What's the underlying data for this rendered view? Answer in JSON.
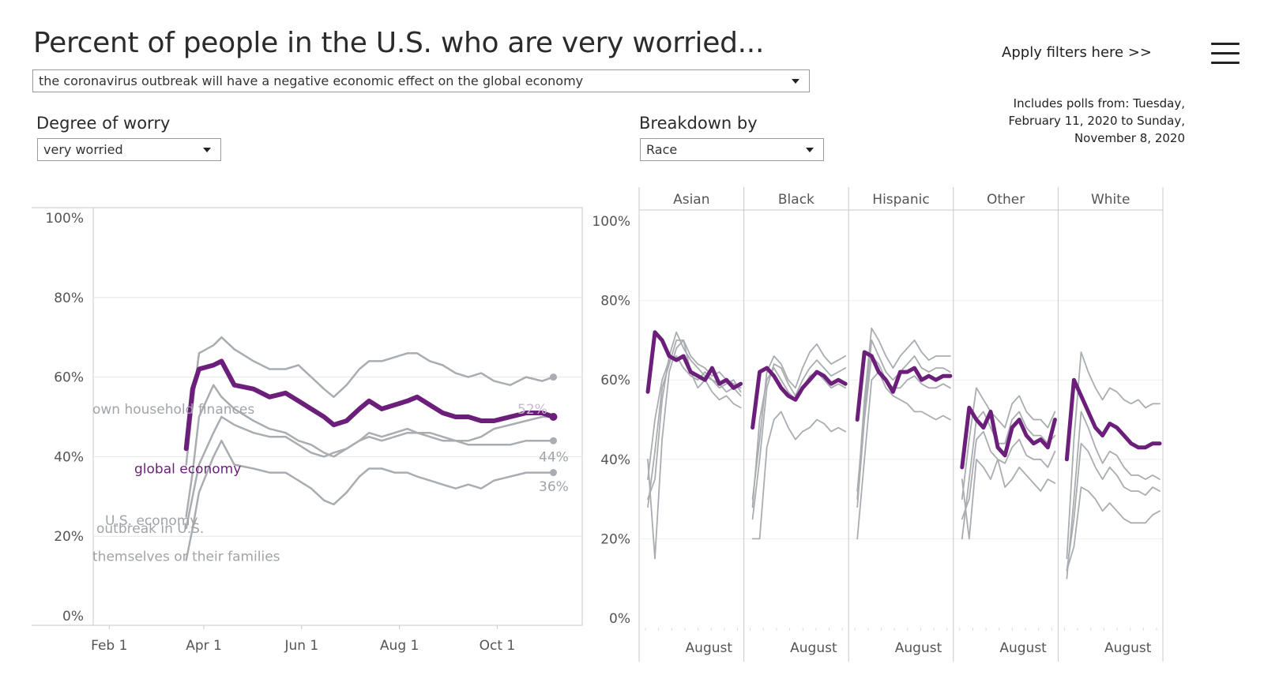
{
  "header": {
    "title": "Percent of people in the U.S. who are very worried...",
    "apply_filters": "Apply filters here >>",
    "polls_note": [
      "Includes polls from: Tuesday,",
      "February 11, 2020 to Sunday,",
      "November 8, 2020"
    ]
  },
  "filters": {
    "topic": {
      "value": "the coronavirus outbreak will have a negative economic effect on the global economy"
    },
    "degree": {
      "label": "Degree of worry",
      "value": "very worried"
    },
    "breakdown": {
      "label": "Breakdown by",
      "value": "Race"
    }
  },
  "colors": {
    "highlight": "#6b1f7a",
    "other": "#a9adb1",
    "grid": "#e6e6e6",
    "axis": "#c8c8c8"
  },
  "chart_data": [
    {
      "type": "line",
      "title": "Percent of people in the U.S. who are very worried...",
      "ylim": [
        0,
        100
      ],
      "yticks": [
        "0%",
        "20%",
        "40%",
        "60%",
        "80%",
        "100%"
      ],
      "xticks": [
        "Feb 1",
        "Apr 1",
        "Jun 1",
        "Aug 1",
        "Oct 1"
      ],
      "x_range_days": [
        0,
        305
      ],
      "xtick_days": [
        10,
        69,
        130,
        191,
        252
      ],
      "end_labels": [
        "52%",
        "44%",
        "36%"
      ],
      "series": [
        {
          "name": "global economy",
          "highlight": true,
          "points": [
            [
              58,
              42
            ],
            [
              62,
              57
            ],
            [
              66,
              62
            ],
            [
              75,
              63
            ],
            [
              80,
              64
            ],
            [
              88,
              58
            ],
            [
              100,
              57
            ],
            [
              110,
              55
            ],
            [
              120,
              56
            ],
            [
              128,
              54
            ],
            [
              136,
              52
            ],
            [
              144,
              50
            ],
            [
              150,
              48
            ],
            [
              158,
              49
            ],
            [
              166,
              52
            ],
            [
              172,
              54
            ],
            [
              180,
              52
            ],
            [
              188,
              53
            ],
            [
              196,
              54
            ],
            [
              202,
              55
            ],
            [
              210,
              53
            ],
            [
              218,
              51
            ],
            [
              226,
              50
            ],
            [
              234,
              50
            ],
            [
              242,
              49
            ],
            [
              250,
              49
            ],
            [
              260,
              50
            ],
            [
              270,
              51
            ],
            [
              280,
              51
            ],
            [
              287,
              50
            ]
          ]
        },
        {
          "name": "U.S. economy",
          "highlight": false,
          "points": [
            [
              58,
              38
            ],
            [
              62,
              53
            ],
            [
              66,
              66
            ],
            [
              75,
              68
            ],
            [
              80,
              70
            ],
            [
              88,
              67
            ],
            [
              100,
              64
            ],
            [
              110,
              62
            ],
            [
              120,
              62
            ],
            [
              128,
              63
            ],
            [
              136,
              60
            ],
            [
              144,
              57
            ],
            [
              150,
              55
            ],
            [
              158,
              58
            ],
            [
              166,
              62
            ],
            [
              172,
              64
            ],
            [
              180,
              64
            ],
            [
              188,
              65
            ],
            [
              196,
              66
            ],
            [
              202,
              66
            ],
            [
              210,
              64
            ],
            [
              218,
              63
            ],
            [
              226,
              61
            ],
            [
              234,
              60
            ],
            [
              242,
              61
            ],
            [
              250,
              59
            ],
            [
              260,
              58
            ],
            [
              270,
              60
            ],
            [
              280,
              59
            ],
            [
              287,
              60
            ]
          ]
        },
        {
          "name": "own household finances",
          "highlight": false,
          "points": [
            [
              58,
              25
            ],
            [
              62,
              36
            ],
            [
              66,
              50
            ],
            [
              75,
              58
            ],
            [
              80,
              55
            ],
            [
              88,
              52
            ],
            [
              100,
              49
            ],
            [
              110,
              47
            ],
            [
              120,
              46
            ],
            [
              128,
              44
            ],
            [
              136,
              43
            ],
            [
              144,
              41
            ],
            [
              150,
              40
            ],
            [
              158,
              42
            ],
            [
              166,
              44
            ],
            [
              172,
              46
            ],
            [
              180,
              45
            ],
            [
              188,
              46
            ],
            [
              196,
              47
            ],
            [
              202,
              46
            ],
            [
              210,
              45
            ],
            [
              218,
              44
            ],
            [
              226,
              44
            ],
            [
              234,
              43
            ],
            [
              242,
              43
            ],
            [
              250,
              43
            ],
            [
              260,
              43
            ],
            [
              270,
              44
            ],
            [
              280,
              44
            ],
            [
              287,
              44
            ]
          ]
        },
        {
          "name": "outbreak in U.S.",
          "highlight": false,
          "points": [
            [
              58,
              22
            ],
            [
              62,
              30
            ],
            [
              66,
              38
            ],
            [
              75,
              46
            ],
            [
              80,
              50
            ],
            [
              88,
              48
            ],
            [
              100,
              46
            ],
            [
              110,
              45
            ],
            [
              120,
              45
            ],
            [
              128,
              43
            ],
            [
              136,
              41
            ],
            [
              144,
              40
            ],
            [
              150,
              41
            ],
            [
              158,
              42
            ],
            [
              166,
              44
            ],
            [
              172,
              45
            ],
            [
              180,
              44
            ],
            [
              188,
              45
            ],
            [
              196,
              46
            ],
            [
              202,
              46
            ],
            [
              210,
              46
            ],
            [
              218,
              45
            ],
            [
              226,
              44
            ],
            [
              234,
              44
            ],
            [
              242,
              45
            ],
            [
              250,
              47
            ],
            [
              260,
              48
            ],
            [
              270,
              49
            ],
            [
              280,
              50
            ],
            [
              287,
              50
            ]
          ]
        },
        {
          "name": "themselves or their families",
          "highlight": false,
          "points": [
            [
              58,
              14
            ],
            [
              62,
              22
            ],
            [
              66,
              31
            ],
            [
              75,
              40
            ],
            [
              80,
              44
            ],
            [
              88,
              38
            ],
            [
              100,
              37
            ],
            [
              110,
              36
            ],
            [
              120,
              36
            ],
            [
              128,
              34
            ],
            [
              136,
              32
            ],
            [
              144,
              29
            ],
            [
              150,
              28
            ],
            [
              158,
              31
            ],
            [
              166,
              35
            ],
            [
              172,
              37
            ],
            [
              180,
              37
            ],
            [
              188,
              36
            ],
            [
              196,
              36
            ],
            [
              202,
              35
            ],
            [
              210,
              34
            ],
            [
              218,
              33
            ],
            [
              226,
              32
            ],
            [
              234,
              33
            ],
            [
              242,
              32
            ],
            [
              250,
              34
            ],
            [
              260,
              35
            ],
            [
              270,
              36
            ],
            [
              280,
              36
            ],
            [
              287,
              36
            ]
          ]
        }
      ]
    },
    {
      "type": "line",
      "title": "Breakdown by Race",
      "ylim": [
        0,
        100
      ],
      "yticks": [
        "0%",
        "20%",
        "40%",
        "60%",
        "80%",
        "100%"
      ],
      "panels": [
        {
          "name": "Asian",
          "xtick": "August",
          "highlight": [
            57,
            72,
            70,
            66,
            65,
            66,
            62,
            61,
            60,
            63,
            59,
            60,
            58,
            59
          ],
          "others": [
            [
              40,
              15,
              45,
              62,
              68,
              70,
              62,
              58,
              60,
              57,
              55,
              56,
              54,
              53
            ],
            [
              30,
              35,
              55,
              66,
              72,
              68,
              65,
              63,
              61,
              60,
              59,
              57,
              58,
              56
            ],
            [
              28,
              42,
              58,
              64,
              70,
              70,
              66,
              64,
              63,
              61,
              62,
              60,
              59,
              58
            ],
            [
              35,
              50,
              60,
              65,
              66,
              63,
              61,
              60,
              62,
              60,
              58,
              59,
              60,
              57
            ]
          ]
        },
        {
          "name": "Black",
          "xtick": "August",
          "highlight": [
            48,
            62,
            63,
            61,
            58,
            56,
            55,
            58,
            60,
            62,
            61,
            59,
            60,
            59
          ],
          "others": [
            [
              20,
              20,
              43,
              50,
              52,
              48,
              45,
              47,
              48,
              50,
              49,
              47,
              48,
              47
            ],
            [
              30,
              45,
              62,
              66,
              64,
              60,
              58,
              63,
              67,
              69,
              66,
              64,
              65,
              66
            ],
            [
              25,
              40,
              58,
              64,
              63,
              59,
              56,
              60,
              63,
              65,
              63,
              61,
              62,
              63
            ],
            [
              28,
              50,
              60,
              63,
              60,
              57,
              55,
              58,
              61,
              62,
              60,
              58,
              59,
              58
            ]
          ]
        },
        {
          "name": "Hispanic",
          "xtick": "August",
          "highlight": [
            50,
            67,
            66,
            62,
            60,
            57,
            62,
            62,
            63,
            60,
            61,
            60,
            61,
            61
          ],
          "others": [
            [
              20,
              40,
              60,
              62,
              58,
              56,
              55,
              54,
              52,
              52,
              51,
              50,
              51,
              50
            ],
            [
              30,
              55,
              73,
              70,
              66,
              63,
              66,
              68,
              70,
              67,
              65,
              66,
              66,
              66
            ],
            [
              32,
              52,
              70,
              66,
              62,
              60,
              62,
              64,
              66,
              63,
              62,
              63,
              63,
              62
            ],
            [
              28,
              50,
              66,
              64,
              60,
              58,
              58,
              60,
              61,
              59,
              58,
              58,
              59,
              58
            ]
          ]
        },
        {
          "name": "Other",
          "xtick": "August",
          "highlight": [
            38,
            53,
            50,
            48,
            52,
            43,
            41,
            48,
            50,
            46,
            44,
            45,
            43,
            50
          ],
          "others": [
            [
              35,
              20,
              40,
              38,
              35,
              40,
              33,
              35,
              38,
              36,
              34,
              32,
              35,
              34
            ],
            [
              30,
              45,
              58,
              55,
              52,
              50,
              48,
              54,
              56,
              52,
              50,
              50,
              48,
              52
            ],
            [
              25,
              30,
              45,
              47,
              42,
              40,
              39,
              43,
              45,
              41,
              40,
              40,
              38,
              42
            ],
            [
              20,
              35,
              50,
              52,
              48,
              44,
              44,
              50,
              52,
              48,
              46,
              46,
              44,
              46
            ]
          ]
        },
        {
          "name": "White",
          "xtick": "August",
          "highlight": [
            40,
            60,
            56,
            52,
            48,
            46,
            49,
            48,
            46,
            44,
            43,
            43,
            44,
            44
          ],
          "others": [
            [
              15,
              45,
              67,
              62,
              58,
              55,
              58,
              57,
              55,
              54,
              55,
              53,
              54,
              54
            ],
            [
              10,
              30,
              52,
              48,
              43,
              39,
              42,
              41,
              38,
              36,
              36,
              35,
              36,
              35
            ],
            [
              12,
              18,
              33,
              32,
              30,
              27,
              29,
              27,
              25,
              24,
              24,
              24,
              26,
              27
            ],
            [
              12,
              25,
              44,
              42,
              38,
              35,
              38,
              36,
              33,
              32,
              32,
              31,
              33,
              32
            ]
          ]
        }
      ]
    }
  ]
}
